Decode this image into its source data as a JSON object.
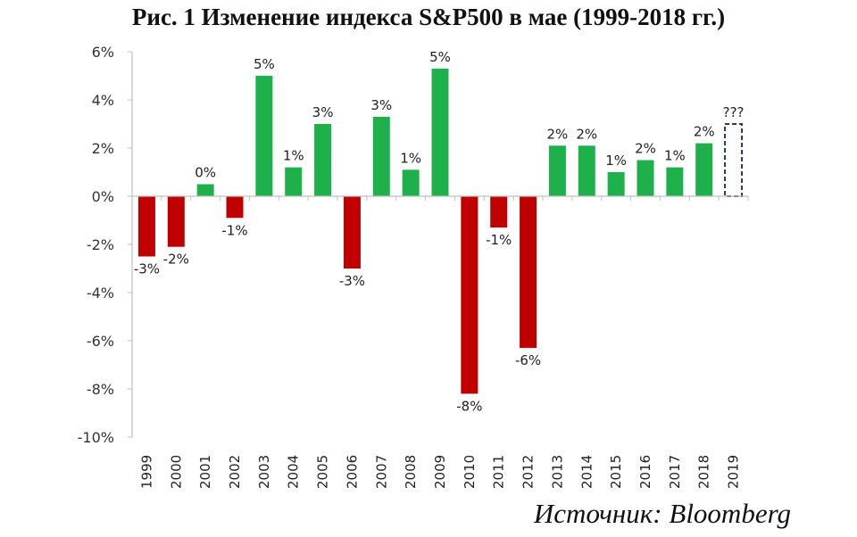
{
  "title": "Рис. 1 Изменение индекса S&P500 в мае (1999-2018 гг.)",
  "source": "Источник: Bloomberg",
  "colors": {
    "negative": "#c00000",
    "positive": "#1eb14b",
    "forecast_border": "#1f3864",
    "axis": "#bfbfbf"
  },
  "chart_data": {
    "type": "bar",
    "categories": [
      "1999",
      "2000",
      "2001",
      "2002",
      "2003",
      "2004",
      "2005",
      "2006",
      "2007",
      "2008",
      "2009",
      "2010",
      "2011",
      "2012",
      "2013",
      "2014",
      "2015",
      "2016",
      "2017",
      "2018",
      "2019"
    ],
    "values": [
      -2.5,
      -2.1,
      0.5,
      -0.9,
      5.0,
      1.2,
      3.0,
      -3.0,
      3.3,
      1.1,
      5.3,
      -8.2,
      -1.3,
      -6.3,
      2.1,
      2.1,
      1.0,
      1.5,
      1.2,
      2.2,
      3.0
    ],
    "data_labels": [
      "-3%",
      "-2%",
      "0%",
      "-1%",
      "5%",
      "1%",
      "3%",
      "-3%",
      "3%",
      "1%",
      "5%",
      "-8%",
      "-1%",
      "-6%",
      "2%",
      "2%",
      "1%",
      "2%",
      "1%",
      "2%",
      "???"
    ],
    "forecast_index": 20,
    "ylim": [
      -10,
      6
    ],
    "yticks": [
      -10,
      -8,
      -6,
      -4,
      -2,
      0,
      2,
      4,
      6
    ],
    "ytick_labels": [
      "-10%",
      "-8%",
      "-6%",
      "-4%",
      "-2%",
      "0%",
      "2%",
      "4%",
      "6%"
    ],
    "xlabel": "",
    "ylabel": "",
    "grid": false
  }
}
